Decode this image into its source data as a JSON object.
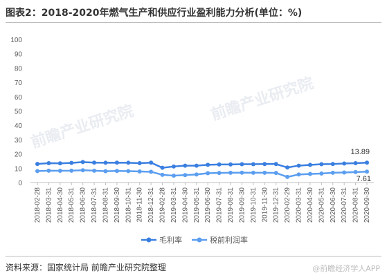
{
  "title": "图表2：2018-2020年燃气生产和供应行业盈利能力分析(单位：%)",
  "source": "资料来源：国家统计局 前瞻产业研究院整理",
  "watermark": "前瞻产业研究院",
  "watermark_small": "@前瞻经济学人APP",
  "colors": {
    "series1": "#3a7fe0",
    "series2": "#5b9ef0",
    "axis": "#bfbfbf",
    "text": "#595959"
  },
  "chart_data": {
    "type": "line",
    "ylim": [
      0,
      100
    ],
    "yticks": [
      0,
      10,
      20,
      30,
      40,
      50,
      60,
      70,
      80,
      90,
      100
    ],
    "x": [
      "2018-02-28",
      "2018-03-31",
      "2018-04-30",
      "2018-05-31",
      "2018-06-30",
      "2018-07-31",
      "2018-08-31",
      "2018-09-30",
      "2018-10-31",
      "2018-11-30",
      "2018-12-31",
      "2019-02-28",
      "2019-03-31",
      "2019-04-30",
      "2019-05-31",
      "2019-06-30",
      "2019-07-31",
      "2019-08-31",
      "2019-09-30",
      "2019-10-31",
      "2019-11-30",
      "2019-12-31",
      "2020-02-29",
      "2020-03-31",
      "2020-04-30",
      "2020-05-31",
      "2020-06-30",
      "2020-07-31",
      "2020-08-31",
      "2020-09-30"
    ],
    "series": [
      {
        "name": "毛利率",
        "values": [
          13.0,
          13.5,
          13.4,
          13.7,
          14.3,
          13.9,
          13.8,
          13.9,
          13.8,
          13.5,
          13.9,
          10.3,
          11.2,
          11.8,
          11.8,
          12.4,
          12.6,
          12.6,
          12.8,
          12.8,
          12.9,
          12.9,
          10.5,
          11.8,
          12.3,
          12.8,
          12.9,
          13.3,
          13.5,
          13.89
        ]
      },
      {
        "name": "税前利润率",
        "values": [
          8.0,
          8.3,
          8.2,
          8.3,
          8.6,
          8.3,
          7.9,
          8.1,
          8.0,
          7.7,
          7.5,
          5.4,
          4.8,
          5.2,
          5.6,
          6.5,
          6.7,
          6.8,
          6.9,
          6.8,
          6.8,
          6.7,
          3.9,
          5.6,
          6.0,
          6.3,
          6.8,
          7.0,
          7.3,
          7.61
        ]
      }
    ],
    "end_labels": [
      "13.89",
      "7.61"
    ],
    "legend_position": "bottom",
    "grid": false
  }
}
